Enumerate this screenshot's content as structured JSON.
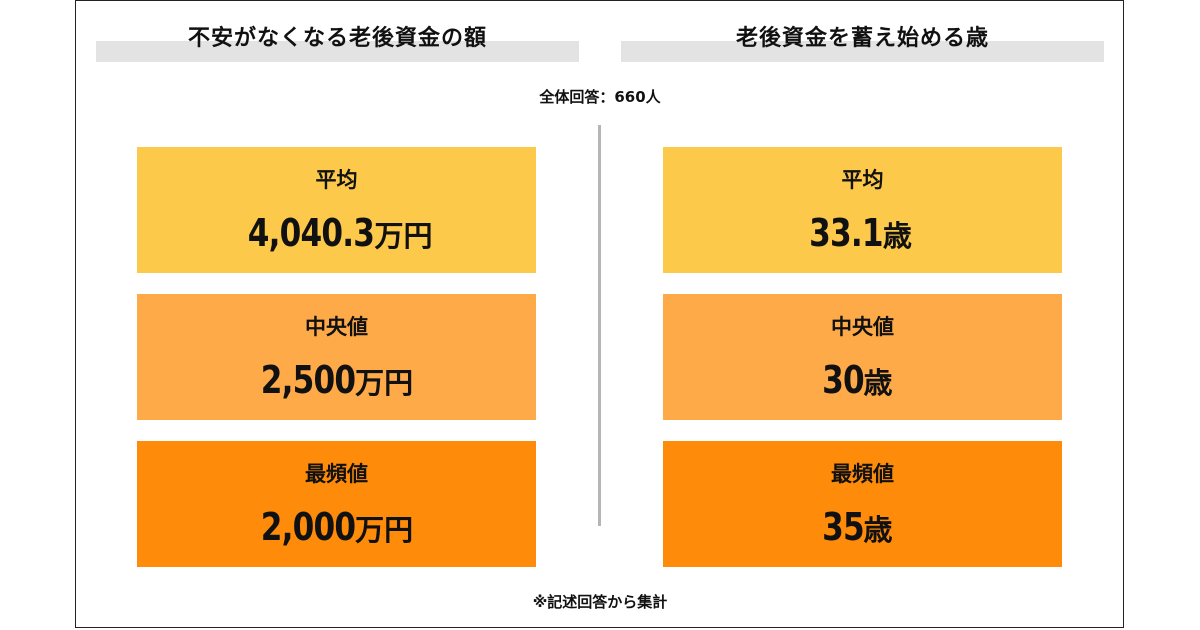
{
  "colors": {
    "average": "#fdc94a",
    "median": "#feaa48",
    "mode": "#fe8b0a",
    "header_bar": "#e3e3e3",
    "divider": "#b5b5b5"
  },
  "left": {
    "title": "不安がなくなる老後資金の額",
    "cards": [
      {
        "label": "平均",
        "number": "4,040.3",
        "unit": "万円"
      },
      {
        "label": "中央値",
        "number": "2,500",
        "unit": "万円"
      },
      {
        "label": "最頻値",
        "number": "2,000",
        "unit": "万円"
      }
    ]
  },
  "right": {
    "title": "老後資金を蓄え始める歳",
    "cards": [
      {
        "label": "平均",
        "number": "33.1",
        "unit": "歳"
      },
      {
        "label": "中央値",
        "number": "30",
        "unit": "歳"
      },
      {
        "label": "最頻値",
        "number": "35",
        "unit": "歳"
      }
    ]
  },
  "respondents": "全体回答：660人",
  "footnote": "※記述回答から集計"
}
